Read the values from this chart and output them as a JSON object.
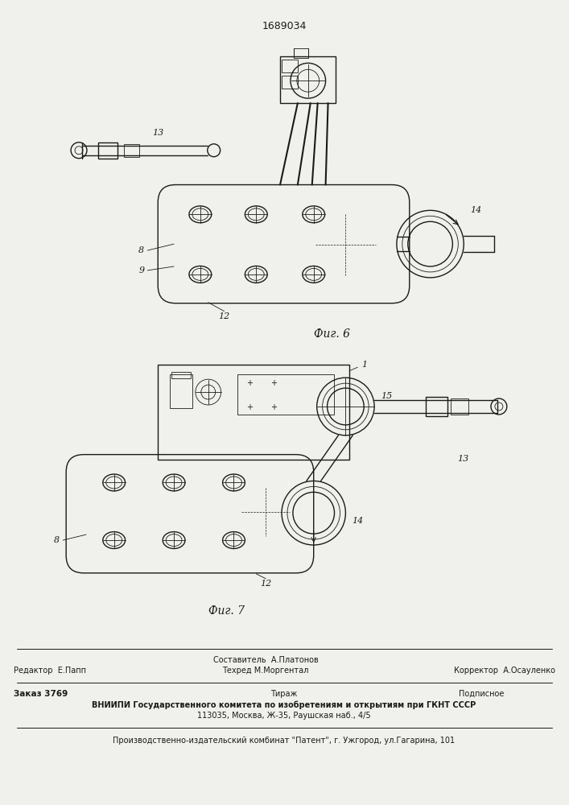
{
  "patent_number": "1689034",
  "bg_color": "#f0f0ec",
  "line_color": "#1a1a1a",
  "fig6_label": "Фиг. 6",
  "fig7_label": "Фиг. 7",
  "footer_line1_left": "Редактор  Е.Папп",
  "footer_line1_mid1": "Составитель  А.Платонов",
  "footer_line1_mid2": "Техред М.Моргентал",
  "footer_line1_right": "Корректор  А.Осауленко",
  "footer_line2_left": "Заказ 3769",
  "footer_line2_mid": "Тираж",
  "footer_line2_right": "Подписное",
  "footer_line3": "ВНИИПИ Государственного комитета по изобретениям и открытиям при ГКНТ СССР",
  "footer_line4": "113035, Москва, Ж-35, Раушская наб., 4/5",
  "footer_line5": "Производственно-издательский комбинат \"Патент\", г. Ужгород, ул.Гагарина, 101"
}
